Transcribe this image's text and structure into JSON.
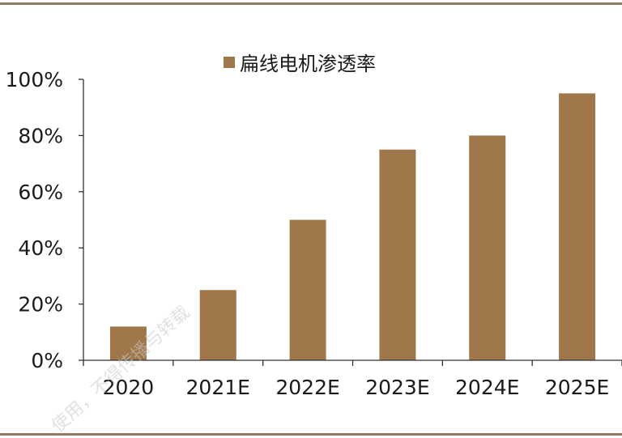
{
  "chart_data": {
    "type": "bar",
    "categories": [
      "2020",
      "2021E",
      "2022E",
      "2023E",
      "2024E",
      "2025E"
    ],
    "series": [
      {
        "name": "扁线电机渗透率",
        "values": [
          12,
          25,
          50,
          75,
          80,
          95
        ]
      }
    ],
    "ylim": [
      0,
      100
    ],
    "yticks": [
      "0%",
      "20%",
      "40%",
      "60%",
      "80%",
      "100%"
    ],
    "ytick_values": [
      0,
      20,
      40,
      60,
      80,
      100
    ],
    "grid": false,
    "legend_position": "top",
    "colors": {
      "bar": "#a0774b",
      "axis": "#333333",
      "rule": "#8c7a66"
    }
  },
  "watermark": {
    "text": "使用，不得传播与转载"
  }
}
